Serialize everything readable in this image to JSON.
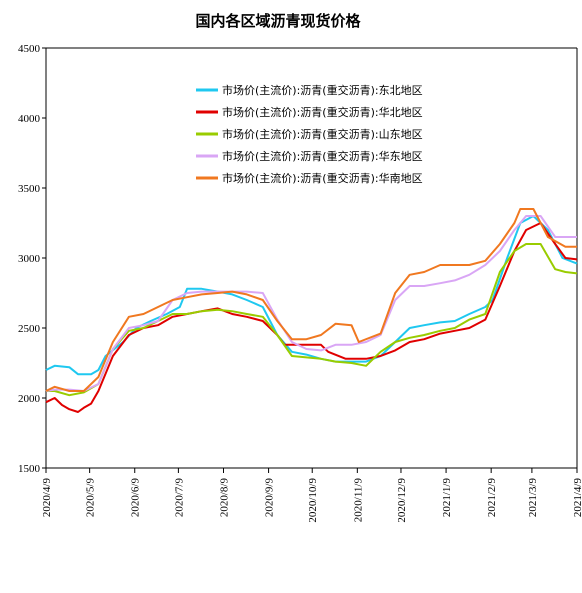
{
  "chart_data": {
    "type": "line",
    "title": "国内各区域沥青现货价格",
    "xlabel": "",
    "ylabel": "",
    "ylim": [
      1500,
      4500
    ],
    "yticks": [
      1500,
      2000,
      2500,
      3000,
      3500,
      4000,
      4500
    ],
    "x_tick_labels": [
      "2020/4/9",
      "2020/5/9",
      "2020/6/9",
      "2020/7/9",
      "2020/8/9",
      "2020/9/9",
      "2020/10/9",
      "2020/11/9",
      "2020/12/9",
      "2021/1/9",
      "2021/2/9",
      "2021/3/9",
      "2021/4/9"
    ],
    "x_range": [
      "2020/4/9",
      "2021/4/9"
    ],
    "grid": false,
    "legend_position": "top-center",
    "series": [
      {
        "name": "市场价(主流价):沥青(重交沥青):东北地区",
        "color": "#1fc8f0",
        "points": [
          [
            "2020/4/9",
            2200
          ],
          [
            "2020/4/15",
            2230
          ],
          [
            "2020/4/25",
            2220
          ],
          [
            "2020/5/1",
            2170
          ],
          [
            "2020/5/10",
            2170
          ],
          [
            "2020/5/15",
            2200
          ],
          [
            "2020/5/20",
            2300
          ],
          [
            "2020/6/1",
            2400
          ],
          [
            "2020/6/10",
            2500
          ],
          [
            "2020/6/20",
            2550
          ],
          [
            "2020/7/1",
            2600
          ],
          [
            "2020/7/10",
            2650
          ],
          [
            "2020/7/15",
            2780
          ],
          [
            "2020/7/25",
            2780
          ],
          [
            "2020/8/5",
            2760
          ],
          [
            "2020/8/15",
            2740
          ],
          [
            "2020/8/25",
            2700
          ],
          [
            "2020/9/5",
            2650
          ],
          [
            "2020/9/15",
            2450
          ],
          [
            "2020/9/25",
            2330
          ],
          [
            "2020/10/5",
            2310
          ],
          [
            "2020/10/15",
            2280
          ],
          [
            "2020/10/25",
            2260
          ],
          [
            "2020/11/5",
            2260
          ],
          [
            "2020/11/15",
            2260
          ],
          [
            "2020/11/25",
            2300
          ],
          [
            "2020/12/5",
            2400
          ],
          [
            "2020/12/15",
            2500
          ],
          [
            "2020/12/25",
            2520
          ],
          [
            "2021/1/5",
            2540
          ],
          [
            "2021/1/15",
            2550
          ],
          [
            "2021/1/25",
            2600
          ],
          [
            "2021/2/5",
            2650
          ],
          [
            "2021/2/10",
            2700
          ],
          [
            "2021/2/20",
            3000
          ],
          [
            "2021/3/1",
            3250
          ],
          [
            "2021/3/10",
            3300
          ],
          [
            "2021/3/20",
            3200
          ],
          [
            "2021/3/30",
            3000
          ],
          [
            "2021/4/9",
            2960
          ]
        ]
      },
      {
        "name": "市场价(主流价):沥青(重交沥青):华北地区",
        "color": "#e00000",
        "points": [
          [
            "2020/4/9",
            1970
          ],
          [
            "2020/4/15",
            2000
          ],
          [
            "2020/4/20",
            1950
          ],
          [
            "2020/4/25",
            1920
          ],
          [
            "2020/5/1",
            1900
          ],
          [
            "2020/5/5",
            1930
          ],
          [
            "2020/5/10",
            1960
          ],
          [
            "2020/5/15",
            2050
          ],
          [
            "2020/5/25",
            2300
          ],
          [
            "2020/6/5",
            2450
          ],
          [
            "2020/6/15",
            2500
          ],
          [
            "2020/6/25",
            2520
          ],
          [
            "2020/7/5",
            2580
          ],
          [
            "2020/7/15",
            2600
          ],
          [
            "2020/7/25",
            2620
          ],
          [
            "2020/8/5",
            2640
          ],
          [
            "2020/8/15",
            2600
          ],
          [
            "2020/8/25",
            2580
          ],
          [
            "2020/9/5",
            2550
          ],
          [
            "2020/9/15",
            2450
          ],
          [
            "2020/9/20",
            2380
          ],
          [
            "2020/10/1",
            2380
          ],
          [
            "2020/10/15",
            2380
          ],
          [
            "2020/10/20",
            2330
          ],
          [
            "2020/11/1",
            2280
          ],
          [
            "2020/11/15",
            2280
          ],
          [
            "2020/11/25",
            2300
          ],
          [
            "2020/12/5",
            2340
          ],
          [
            "2020/12/15",
            2400
          ],
          [
            "2020/12/25",
            2420
          ],
          [
            "2021/1/5",
            2460
          ],
          [
            "2021/1/15",
            2480
          ],
          [
            "2021/1/25",
            2500
          ],
          [
            "2021/2/5",
            2560
          ],
          [
            "2021/2/15",
            2800
          ],
          [
            "2021/2/25",
            3050
          ],
          [
            "2021/3/5",
            3200
          ],
          [
            "2021/3/15",
            3250
          ],
          [
            "2021/3/25",
            3100
          ],
          [
            "2021/4/1",
            3000
          ],
          [
            "2021/4/9",
            2990
          ]
        ]
      },
      {
        "name": "市场价(主流价):沥青(重交沥青):山东地区",
        "color": "#99cc00",
        "points": [
          [
            "2020/4/9",
            2050
          ],
          [
            "2020/4/15",
            2050
          ],
          [
            "2020/4/25",
            2020
          ],
          [
            "2020/5/5",
            2040
          ],
          [
            "2020/5/15",
            2100
          ],
          [
            "2020/5/25",
            2350
          ],
          [
            "2020/6/5",
            2480
          ],
          [
            "2020/6/15",
            2500
          ],
          [
            "2020/6/25",
            2550
          ],
          [
            "2020/7/5",
            2600
          ],
          [
            "2020/7/15",
            2600
          ],
          [
            "2020/7/25",
            2620
          ],
          [
            "2020/8/5",
            2630
          ],
          [
            "2020/8/15",
            2620
          ],
          [
            "2020/8/25",
            2600
          ],
          [
            "2020/9/5",
            2580
          ],
          [
            "2020/9/15",
            2450
          ],
          [
            "2020/9/25",
            2300
          ],
          [
            "2020/10/5",
            2290
          ],
          [
            "2020/10/15",
            2280
          ],
          [
            "2020/10/25",
            2260
          ],
          [
            "2020/11/5",
            2250
          ],
          [
            "2020/11/15",
            2230
          ],
          [
            "2020/11/20",
            2280
          ],
          [
            "2020/11/25",
            2330
          ],
          [
            "2020/12/5",
            2400
          ],
          [
            "2020/12/15",
            2430
          ],
          [
            "2020/12/25",
            2450
          ],
          [
            "2021/1/5",
            2480
          ],
          [
            "2021/1/15",
            2500
          ],
          [
            "2021/1/25",
            2560
          ],
          [
            "2021/2/5",
            2600
          ],
          [
            "2021/2/15",
            2900
          ],
          [
            "2021/2/25",
            3050
          ],
          [
            "2021/3/5",
            3100
          ],
          [
            "2021/3/15",
            3100
          ],
          [
            "2021/3/25",
            2920
          ],
          [
            "2021/4/1",
            2900
          ],
          [
            "2021/4/9",
            2890
          ]
        ]
      },
      {
        "name": "市场价(主流价):沥青(重交沥青):华东地区",
        "color": "#d9a6f5",
        "points": [
          [
            "2020/4/9",
            2050
          ],
          [
            "2020/4/15",
            2060
          ],
          [
            "2020/4/25",
            2060
          ],
          [
            "2020/5/5",
            2050
          ],
          [
            "2020/5/15",
            2100
          ],
          [
            "2020/5/25",
            2350
          ],
          [
            "2020/6/5",
            2500
          ],
          [
            "2020/6/15",
            2520
          ],
          [
            "2020/6/25",
            2550
          ],
          [
            "2020/7/5",
            2700
          ],
          [
            "2020/7/15",
            2750
          ],
          [
            "2020/7/25",
            2760
          ],
          [
            "2020/8/5",
            2760
          ],
          [
            "2020/8/15",
            2760
          ],
          [
            "2020/8/25",
            2760
          ],
          [
            "2020/9/5",
            2750
          ],
          [
            "2020/9/15",
            2560
          ],
          [
            "2020/9/25",
            2400
          ],
          [
            "2020/10/5",
            2350
          ],
          [
            "2020/10/15",
            2340
          ],
          [
            "2020/10/25",
            2380
          ],
          [
            "2020/11/5",
            2380
          ],
          [
            "2020/11/15",
            2400
          ],
          [
            "2020/11/25",
            2450
          ],
          [
            "2020/12/5",
            2700
          ],
          [
            "2020/12/15",
            2800
          ],
          [
            "2020/12/25",
            2800
          ],
          [
            "2021/1/5",
            2820
          ],
          [
            "2021/1/15",
            2840
          ],
          [
            "2021/1/25",
            2880
          ],
          [
            "2021/2/5",
            2950
          ],
          [
            "2021/2/15",
            3050
          ],
          [
            "2021/2/25",
            3200
          ],
          [
            "2021/3/5",
            3300
          ],
          [
            "2021/3/15",
            3300
          ],
          [
            "2021/3/25",
            3150
          ],
          [
            "2021/4/9",
            3150
          ]
        ]
      },
      {
        "name": "市场价(主流价):沥青(重交沥青):华南地区",
        "color": "#f07820",
        "points": [
          [
            "2020/4/9",
            2050
          ],
          [
            "2020/4/15",
            2080
          ],
          [
            "2020/4/25",
            2050
          ],
          [
            "2020/5/5",
            2050
          ],
          [
            "2020/5/15",
            2150
          ],
          [
            "2020/5/25",
            2400
          ],
          [
            "2020/6/5",
            2580
          ],
          [
            "2020/6/15",
            2600
          ],
          [
            "2020/6/25",
            2650
          ],
          [
            "2020/7/5",
            2700
          ],
          [
            "2020/7/15",
            2720
          ],
          [
            "2020/7/25",
            2740
          ],
          [
            "2020/8/5",
            2750
          ],
          [
            "2020/8/15",
            2760
          ],
          [
            "2020/8/25",
            2740
          ],
          [
            "2020/9/5",
            2700
          ],
          [
            "2020/9/15",
            2550
          ],
          [
            "2020/9/25",
            2420
          ],
          [
            "2020/10/5",
            2420
          ],
          [
            "2020/10/15",
            2450
          ],
          [
            "2020/10/25",
            2530
          ],
          [
            "2020/11/5",
            2520
          ],
          [
            "2020/11/10",
            2400
          ],
          [
            "2020/11/25",
            2460
          ],
          [
            "2020/12/5",
            2750
          ],
          [
            "2020/12/15",
            2880
          ],
          [
            "2020/12/25",
            2900
          ],
          [
            "2021/1/5",
            2950
          ],
          [
            "2021/1/15",
            2950
          ],
          [
            "2021/1/25",
            2950
          ],
          [
            "2021/2/5",
            2980
          ],
          [
            "2021/2/15",
            3100
          ],
          [
            "2021/2/25",
            3250
          ],
          [
            "2021/3/1",
            3350
          ],
          [
            "2021/3/10",
            3350
          ],
          [
            "2021/3/20",
            3150
          ],
          [
            "2021/4/1",
            3080
          ],
          [
            "2021/4/9",
            3080
          ]
        ]
      }
    ]
  }
}
